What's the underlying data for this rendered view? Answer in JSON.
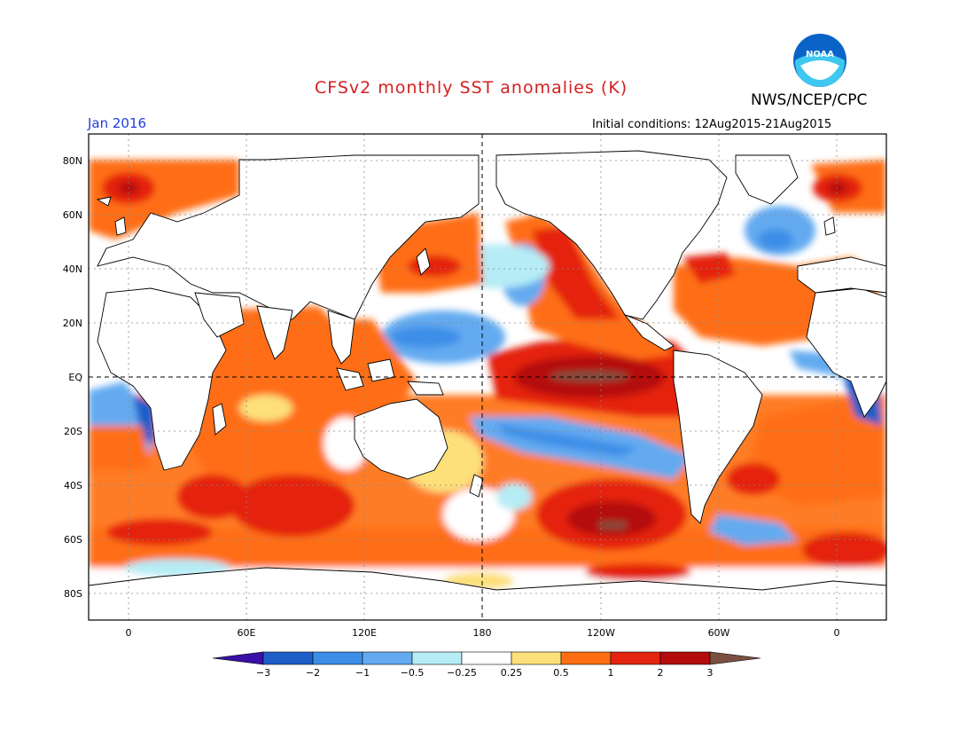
{
  "header": {
    "title": "CFSv2 monthly SST anomalies (K)",
    "agency": "NWS/NCEP/CPC",
    "valid_month": "Jan 2016",
    "initial_conditions": "Initial conditions: 12Aug2015-21Aug2015",
    "logo_text": "NOAA"
  },
  "map": {
    "projection": "cylindrical equidistant",
    "lon_range": [
      -20,
      380
    ],
    "lat_range": [
      -90,
      90
    ],
    "center_longitude": 180,
    "reference_lines": [
      "EQ",
      "180"
    ],
    "grid": true,
    "lat_labels": [
      "80N",
      "60N",
      "40N",
      "20N",
      "EQ",
      "20S",
      "40S",
      "60S",
      "80S"
    ],
    "lon_labels": [
      "0",
      "60E",
      "120E",
      "180",
      "120W",
      "60W",
      "0"
    ]
  },
  "colorbar": {
    "labels": [
      "-3",
      "-2",
      "-1",
      "-0.5",
      "-0.25",
      "0.25",
      "0.5",
      "1",
      "2",
      "3"
    ],
    "colors": [
      "#3a10a8",
      "#1e5ec8",
      "#3c8ee8",
      "#64aaf0",
      "#b6ecf6",
      "#ffffff",
      "#fde07a",
      "#ff6e12",
      "#e4240e",
      "#b40c0c",
      "#7a5040"
    ]
  },
  "colors": {
    "title": "#d42020",
    "month": "#2040e0",
    "land": "#ffffff",
    "coast": "#000000"
  }
}
